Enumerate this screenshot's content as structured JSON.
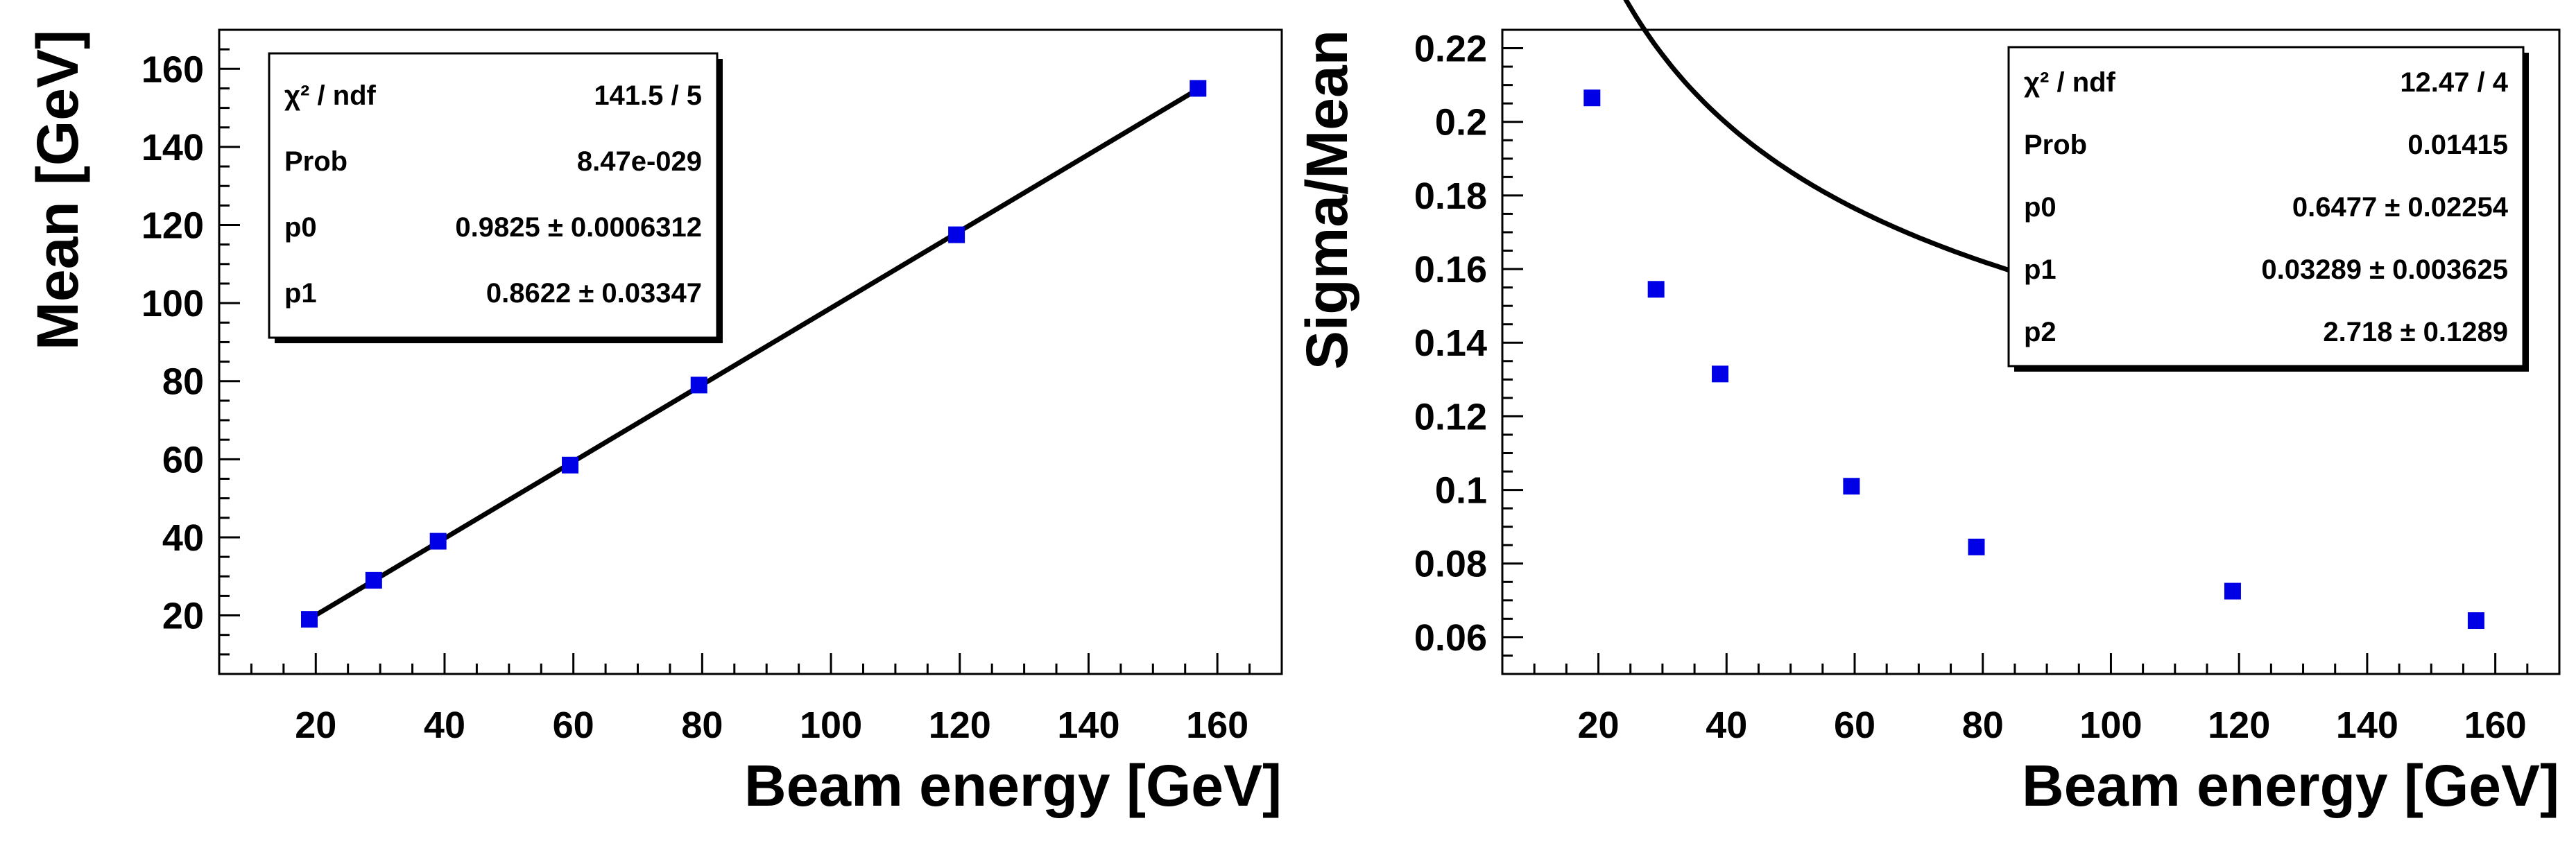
{
  "chart_data": [
    {
      "type": "scatter",
      "xlabel": "Beam energy [GeV]",
      "ylabel": "Mean [GeV]",
      "xlim": [
        5,
        170
      ],
      "ylim": [
        5,
        170
      ],
      "xticks": [
        20,
        40,
        60,
        80,
        100,
        120,
        140,
        160
      ],
      "yticks": [
        20,
        40,
        60,
        80,
        100,
        120,
        140,
        160
      ],
      "grid": false,
      "series": [
        {
          "x": [
            19,
            29,
            39,
            59.5,
            79.5,
            119.5,
            157
          ],
          "y": [
            19,
            29,
            39,
            58.5,
            79,
            117.5,
            155
          ]
        }
      ],
      "fit": {
        "function": "linear",
        "x_range": [
          19,
          157
        ]
      },
      "stats_box": {
        "placement": "top-left",
        "rows": [
          {
            "label": "χ² / ndf",
            "value": "141.5 / 5"
          },
          {
            "label": "Prob",
            "value": "8.47e-029"
          },
          {
            "label": "p0",
            "value": "0.9825 ± 0.0006312"
          },
          {
            "label": "p1",
            "value": "0.8622 ± 0.03347"
          }
        ]
      }
    },
    {
      "type": "scatter",
      "xlabel": "Beam energy [GeV]",
      "ylabel": "Sigma/Mean",
      "xlim": [
        5,
        170
      ],
      "ylim": [
        0.05,
        0.225
      ],
      "xticks": [
        20,
        40,
        60,
        80,
        100,
        120,
        140,
        160
      ],
      "yticks": [
        0.06,
        0.08,
        0.1,
        0.12,
        0.14,
        0.16,
        0.18,
        0.2,
        0.22
      ],
      "grid": false,
      "series": [
        {
          "x": [
            19,
            29,
            39,
            59.5,
            79,
            119,
            157
          ],
          "y": [
            0.2065,
            0.1545,
            0.1315,
            0.101,
            0.0845,
            0.0725,
            0.0645
          ]
        }
      ],
      "fit": {
        "function": "p1 + p0/x^(1/p2)",
        "p0": 0.6477,
        "p1": 0.03289,
        "p2": 2.718,
        "x_range": [
          19,
          157
        ]
      },
      "stats_box": {
        "placement": "top-right",
        "rows": [
          {
            "label": "χ² / ndf",
            "value": "12.47 / 4"
          },
          {
            "label": "Prob",
            "value": "0.01415"
          },
          {
            "label": "p0",
            "value": "0.6477 ± 0.02254"
          },
          {
            "label": "p1",
            "value": "0.03289 ± 0.003625"
          },
          {
            "label": "p2",
            "value": "2.718 ± 0.1289"
          }
        ]
      }
    }
  ]
}
